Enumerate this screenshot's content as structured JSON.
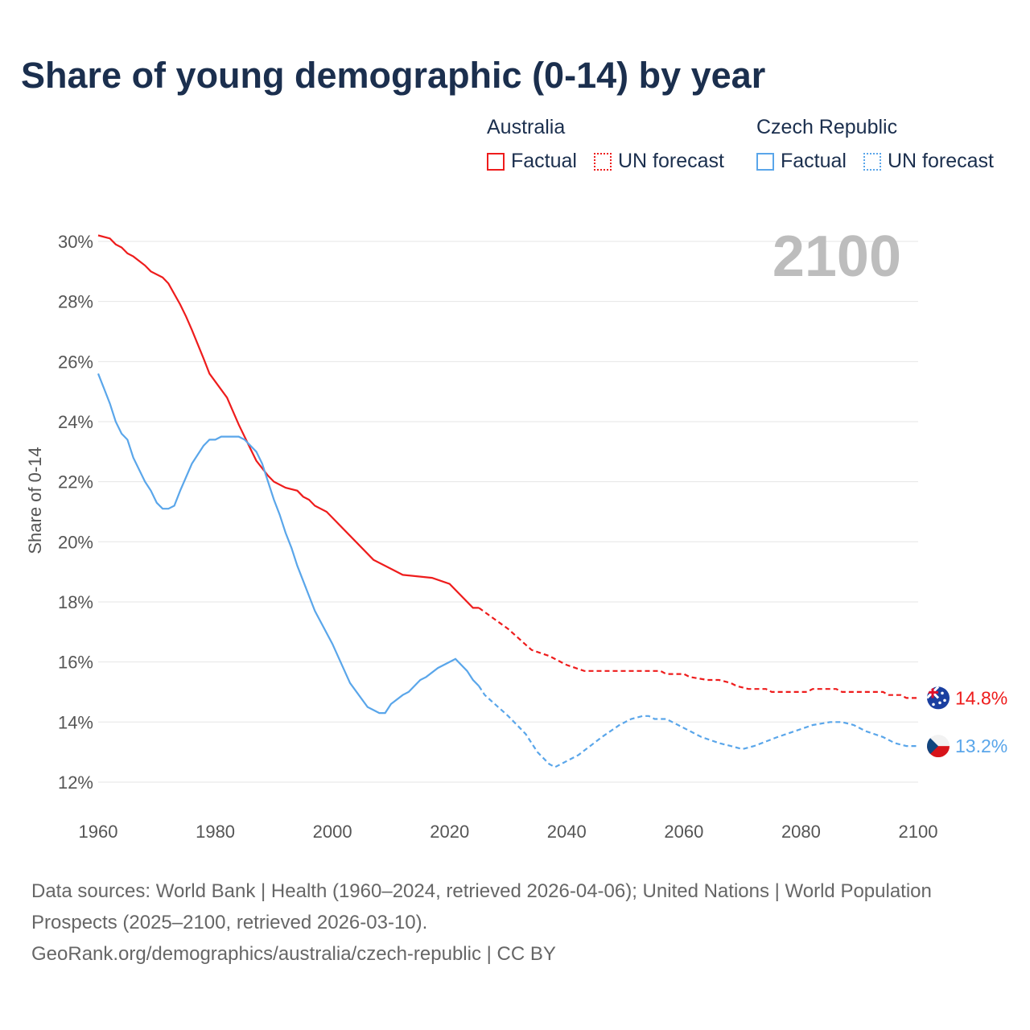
{
  "title": "Share of young demographic (0-14) by year",
  "legend": {
    "groups": [
      {
        "name": "Australia",
        "factual": "Factual",
        "forecast": "UN forecast",
        "color": "#ee1c1c"
      },
      {
        "name": "Czech Republic",
        "factual": "Factual",
        "forecast": "UN forecast",
        "color": "#5aa6ea"
      }
    ]
  },
  "year_label": "2100",
  "footer": {
    "line1": "Data sources: World Bank | Health (1960–2024, retrieved 2026-04-06); United Nations | World Population Prospects (2025–2100, retrieved 2026-03-10).",
    "line2": "GeoRank.org/demographics/australia/czech-republic | CC BY"
  },
  "chart_data": {
    "type": "line",
    "title": "Share of young demographic (0-14) by year",
    "xlabel": "",
    "ylabel": "Share of 0-14",
    "xlim": [
      1960,
      2100
    ],
    "ylim": [
      11,
      31
    ],
    "xticks": [
      "1960",
      "1980",
      "2000",
      "2020",
      "2040",
      "2060",
      "2080",
      "2100"
    ],
    "yticks": [
      "12%",
      "14%",
      "16%",
      "18%",
      "20%",
      "22%",
      "24%",
      "26%",
      "28%",
      "30%"
    ],
    "grid": true,
    "legend_placement": "top-right",
    "series": [
      {
        "name": "Australia",
        "forecast_start": 2024,
        "end_label": "14.8%",
        "x": [
          1960,
          1962,
          1963,
          1964,
          1965,
          1966,
          1968,
          1969,
          1971,
          1972,
          1974,
          1975,
          1976,
          1978,
          1979,
          1982,
          1984,
          1986,
          1987,
          1989,
          1990,
          1992,
          1994,
          1995,
          1996,
          1997,
          1999,
          2000,
          2003,
          2006,
          2007,
          2010,
          2012,
          2017,
          2020,
          2024,
          2025,
          2030,
          2034,
          2037,
          2040,
          2043,
          2056,
          2057,
          2060,
          2061,
          2064,
          2066,
          2068,
          2069,
          2071,
          2074,
          2075,
          2081,
          2082,
          2086,
          2087,
          2094,
          2095,
          2097,
          2098,
          2100
        ],
        "y": [
          30.2,
          30.1,
          29.9,
          29.8,
          29.6,
          29.5,
          29.2,
          29.0,
          28.8,
          28.6,
          27.9,
          27.5,
          27.05,
          26.1,
          25.6,
          24.8,
          23.9,
          23.1,
          22.7,
          22.2,
          22.0,
          21.8,
          21.7,
          21.5,
          21.4,
          21.2,
          21.0,
          20.8,
          20.2,
          19.6,
          19.4,
          19.1,
          18.9,
          18.8,
          18.6,
          17.8,
          17.8,
          17.1,
          16.4,
          16.2,
          15.9,
          15.7,
          15.7,
          15.6,
          15.6,
          15.5,
          15.4,
          15.4,
          15.3,
          15.2,
          15.1,
          15.1,
          15.0,
          15.0,
          15.1,
          15.1,
          15.0,
          15.0,
          14.9,
          14.9,
          14.8,
          14.8
        ]
      },
      {
        "name": "Czech Republic",
        "forecast_start": 2024,
        "end_label": "13.2%",
        "x": [
          1960,
          1961,
          1962,
          1963,
          1964,
          1965,
          1966,
          1968,
          1969,
          1970,
          1971,
          1972,
          1973,
          1974,
          1976,
          1978,
          1979,
          1980,
          1981,
          1984,
          1985,
          1987,
          1988,
          1990,
          1991,
          1992,
          1993,
          1994,
          1997,
          2000,
          2003,
          2006,
          2008,
          2009,
          2010,
          2012,
          2013,
          2015,
          2016,
          2018,
          2021,
          2023,
          2024,
          2025,
          2026,
          2030,
          2032,
          2033,
          2035,
          2037,
          2038,
          2040,
          2042,
          2046,
          2049,
          2051,
          2053,
          2054,
          2055,
          2057,
          2060,
          2063,
          2066,
          2068,
          2070,
          2072,
          2076,
          2079,
          2082,
          2085,
          2087,
          2089,
          2091,
          2094,
          2096,
          2098,
          2100
        ],
        "y": [
          25.6,
          25.1,
          24.6,
          24.0,
          23.6,
          23.4,
          22.8,
          22.0,
          21.7,
          21.3,
          21.1,
          21.1,
          21.2,
          21.7,
          22.6,
          23.2,
          23.4,
          23.4,
          23.5,
          23.5,
          23.4,
          23.0,
          22.6,
          21.4,
          20.9,
          20.3,
          19.8,
          19.2,
          17.7,
          16.6,
          15.3,
          14.5,
          14.3,
          14.3,
          14.6,
          14.9,
          15.0,
          15.4,
          15.5,
          15.8,
          16.1,
          15.7,
          15.4,
          15.2,
          14.9,
          14.2,
          13.8,
          13.6,
          13.0,
          12.6,
          12.5,
          12.7,
          12.9,
          13.5,
          13.9,
          14.1,
          14.2,
          14.2,
          14.1,
          14.1,
          13.8,
          13.5,
          13.3,
          13.2,
          13.1,
          13.2,
          13.5,
          13.7,
          13.9,
          14.0,
          14.0,
          13.9,
          13.7,
          13.5,
          13.3,
          13.2,
          13.2
        ]
      }
    ]
  }
}
